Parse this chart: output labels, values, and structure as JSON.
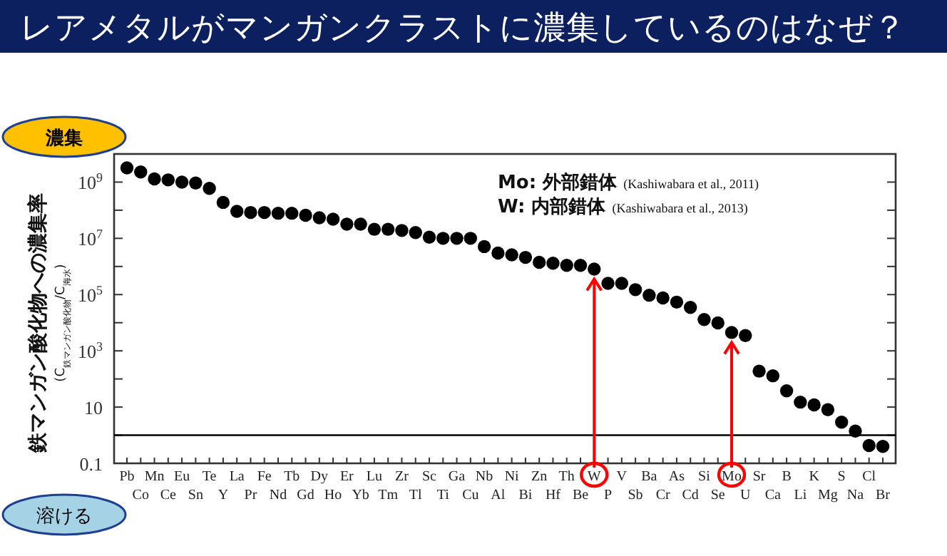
{
  "chart_data": {
    "type": "scatter",
    "title": "レアメタルがマンガンクラストに濃集しているのはなぜ？",
    "ylabel": "鉄マンガン酸化物への濃集率 (C$_{鉄マンガン酸化物}$/C$_{海水}$)",
    "annotations": [
      "Mo: 外部錯体 (Kashiwabara et al., 2011)",
      "W: 内部錯体 (Kashiwabara et al., 2013)",
      "濃集",
      "溶ける"
    ],
    "categories": [
      "Pb",
      "Co",
      "Mn",
      "Ce",
      "Eu",
      "Sn",
      "Te",
      "Y",
      "La",
      "Pr",
      "Fe",
      "Nd",
      "Tb",
      "Gd",
      "Dy",
      "Ho",
      "Er",
      "Yb",
      "Lu",
      "Tm",
      "Zr",
      "Tl",
      "Sc",
      "Ti",
      "Ga",
      "Cu",
      "Nb",
      "Al",
      "Ni",
      "Bi",
      "Zn",
      "Hf",
      "Th",
      "Be",
      "W",
      "P",
      "V",
      "Sb",
      "Ba",
      "Cr",
      "As",
      "Cd",
      "Si",
      "Se",
      "Mo",
      "U",
      "Sr",
      "Ca",
      "B",
      "Li",
      "K",
      "Mg",
      "S",
      "Na",
      "Cl",
      "Br"
    ],
    "series": [
      {
        "color": "#000000",
        "values": [
          3200000000.0,
          2300000000.0,
          1300000000.0,
          1200000000.0,
          1000000000.0,
          930000000.0,
          600000000.0,
          190000000.0,
          91000000.0,
          83000000.0,
          83000000.0,
          78000000.0,
          78000000.0,
          66000000.0,
          54000000.0,
          48000000.0,
          32000000.0,
          32000000.0,
          21000000.0,
          21000000.0,
          19000000.0,
          16000000.0,
          11000000.0,
          10000000.0,
          10000000.0,
          10000000.0,
          5100000.0,
          3000000.0,
          2600000.0,
          2100000.0,
          1400000.0,
          1300000.0,
          1100000.0,
          1100000.0,
          810000.0,
          250000.0,
          250000.0,
          150000.0,
          95000.0,
          76000.0,
          54000.0,
          35000.0,
          13000.0,
          9800.0,
          4500.0,
          3500.0,
          190,
          130,
          38,
          15,
          12,
          8.1,
          2.9,
          1.4,
          0.43,
          0.4
        ]
      }
    ],
    "log": "y",
    "ylim": [
      0.1,
      10000000000.0
    ],
    "yticks": [
      {
        "value": 0.1,
        "label": "0.1"
      },
      {
        "value": 1,
        "label": null
      },
      {
        "value": 10,
        "label": "10"
      },
      {
        "value": 100,
        "label": null
      },
      {
        "value": 1000,
        "label": "10$^{3}$"
      },
      {
        "value": 10000,
        "label": null
      },
      {
        "value": 100000,
        "label": "10$^{5}$"
      },
      {
        "value": 1000000,
        "label": null
      },
      {
        "value": 10000000,
        "label": "10$^{7}$"
      },
      {
        "value": 100000000,
        "label": null
      },
      {
        "value": 1000000000,
        "label": "10$^{9}$"
      }
    ],
    "ref_lines": [
      {
        "axis": "y",
        "value": 1,
        "color": "#000000"
      }
    ],
    "marker": "circle",
    "grid": false
  }
}
